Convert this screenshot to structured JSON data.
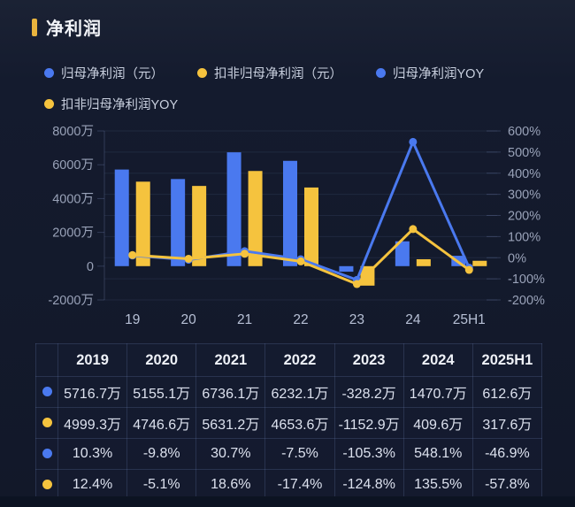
{
  "header": {
    "title": "净利润"
  },
  "colors": {
    "blue": "#4a79ef",
    "yellow": "#f5c33e",
    "accent_bar": "#e9b43e",
    "grid": "rgba(125,145,195,0.12)",
    "axis": "rgba(125,145,195,0.28)",
    "axis_label": "#99a2b8",
    "x_label": "#b7c0d5"
  },
  "legend": {
    "items": [
      {
        "label": "归母净利润（元）",
        "color": "#4a79ef"
      },
      {
        "label": "扣非归母净利润（元）",
        "color": "#f5c33e"
      },
      {
        "label": "归母净利润YOY",
        "color": "#4a79ef"
      },
      {
        "label": "扣非归母净利润YOY",
        "color": "#f5c33e"
      }
    ]
  },
  "chart_data": {
    "type": "bar+line combo",
    "categories": [
      "19",
      "20",
      "21",
      "22",
      "23",
      "24",
      "25H1"
    ],
    "series": [
      {
        "name": "归母净利润（元）",
        "type": "bar",
        "axis": "left",
        "color": "#4a79ef",
        "unit": "万",
        "values": [
          5716.7,
          5155.1,
          6736.1,
          6232.1,
          -328.2,
          1470.7,
          612.6
        ]
      },
      {
        "name": "扣非归母净利润（元）",
        "type": "bar",
        "axis": "left",
        "color": "#f5c33e",
        "unit": "万",
        "values": [
          4999.3,
          4746.6,
          5631.2,
          4653.6,
          -1152.9,
          409.6,
          317.6
        ]
      },
      {
        "name": "归母净利润YOY",
        "type": "line",
        "axis": "right",
        "color": "#4a79ef",
        "unit": "%",
        "values": [
          10.3,
          -9.8,
          30.7,
          -7.5,
          -105.3,
          548.1,
          -46.9
        ]
      },
      {
        "name": "扣非归母净利润YOY",
        "type": "line",
        "axis": "right",
        "color": "#f5c33e",
        "unit": "%",
        "values": [
          12.4,
          -5.1,
          18.6,
          -17.4,
          -124.8,
          135.5,
          -57.8
        ]
      }
    ],
    "left_axis": {
      "min": -2000,
      "max": 8000,
      "ticks": [
        {
          "label": "8000万",
          "value": 8000
        },
        {
          "label": "6000万",
          "value": 6000
        },
        {
          "label": "4000万",
          "value": 4000
        },
        {
          "label": "2000万",
          "value": 2000
        },
        {
          "label": "0",
          "value": 0
        },
        {
          "label": "-2000万",
          "value": -2000
        }
      ]
    },
    "right_axis": {
      "min": -200,
      "max": 600,
      "ticks": [
        {
          "label": "600%",
          "value": 600
        },
        {
          "label": "500%",
          "value": 500
        },
        {
          "label": "400%",
          "value": 400
        },
        {
          "label": "300%",
          "value": 300
        },
        {
          "label": "200%",
          "value": 200
        },
        {
          "label": "100%",
          "value": 100
        },
        {
          "label": "0%",
          "value": 0
        },
        {
          "label": "-100%",
          "value": -100
        },
        {
          "label": "-200%",
          "value": -200
        }
      ]
    },
    "grid": true,
    "legend_position": "top"
  },
  "table": {
    "columns": [
      "2019",
      "2020",
      "2021",
      "2022",
      "2023",
      "2024",
      "2025H1"
    ],
    "rows": [
      {
        "dot_color": "#4a79ef",
        "series": "归母净利润（元）",
        "cells": [
          "5716.7万",
          "5155.1万",
          "6736.1万",
          "6232.1万",
          "-328.2万",
          "1470.7万",
          "612.6万"
        ]
      },
      {
        "dot_color": "#f5c33e",
        "series": "扣非归母净利润（元）",
        "cells": [
          "4999.3万",
          "4746.6万",
          "5631.2万",
          "4653.6万",
          "-1152.9万",
          "409.6万",
          "317.6万"
        ]
      },
      {
        "dot_color": "#4a79ef",
        "series": "归母净利润YOY",
        "cells": [
          "10.3%",
          "-9.8%",
          "30.7%",
          "-7.5%",
          "-105.3%",
          "548.1%",
          "-46.9%"
        ]
      },
      {
        "dot_color": "#f5c33e",
        "series": "扣非归母净利润YOY",
        "cells": [
          "12.4%",
          "-5.1%",
          "18.6%",
          "-17.4%",
          "-124.8%",
          "135.5%",
          "-57.8%"
        ]
      }
    ]
  }
}
